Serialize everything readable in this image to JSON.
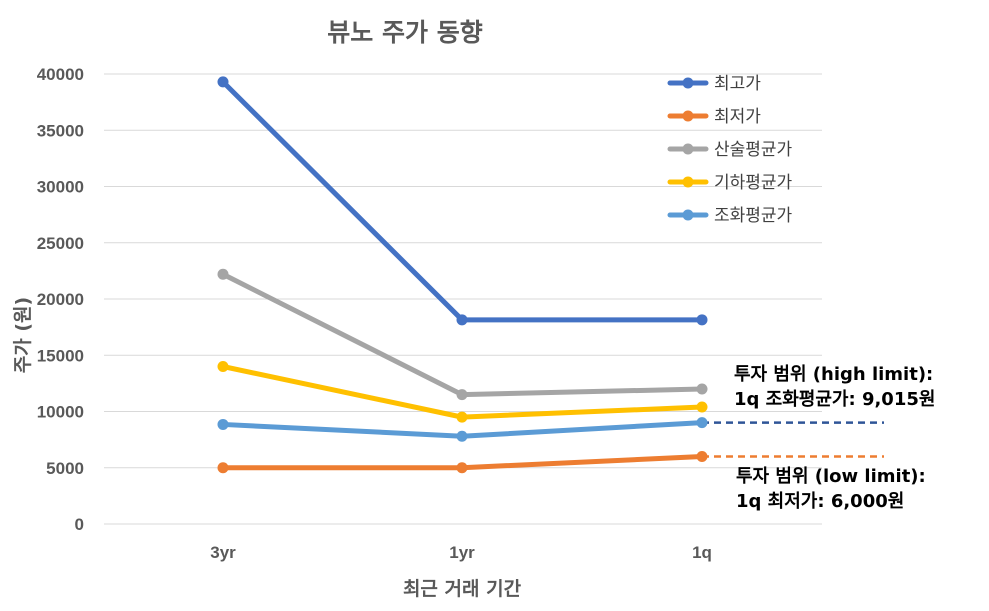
{
  "chart_data": {
    "type": "line",
    "title": "뷰노 주가 동향",
    "xlabel": "최근 거래 기간",
    "ylabel": "주가 (원)",
    "categories": [
      "3yr",
      "1yr",
      "1q"
    ],
    "ylim": [
      0,
      40000
    ],
    "yticks": [
      0,
      5000,
      10000,
      15000,
      20000,
      25000,
      30000,
      35000,
      40000
    ],
    "grid": true,
    "legend_position": "top-right",
    "series": [
      {
        "name": "최고가",
        "color": "#4472C4",
        "values": [
          39300,
          18150,
          18150
        ]
      },
      {
        "name": "최저가",
        "color": "#ED7D31",
        "values": [
          5000,
          5000,
          6000
        ]
      },
      {
        "name": "산술평균가",
        "color": "#A5A5A5",
        "values": [
          22200,
          11500,
          12000
        ]
      },
      {
        "name": "기하평균가",
        "color": "#FFC000",
        "values": [
          14000,
          9500,
          10400
        ]
      },
      {
        "name": "조화평균가",
        "color": "#5B9BD5",
        "values": [
          8850,
          7800,
          9015
        ]
      }
    ],
    "reference_lines": [
      {
        "value": 9015,
        "color": "#2F5597",
        "style": "dashed"
      },
      {
        "value": 6000,
        "color": "#ED7D31",
        "style": "dashed"
      }
    ],
    "annotations": [
      {
        "line1": "투자 범위 (high limit):",
        "line2": "1q 조화평균가: 9,015원"
      },
      {
        "line1": "투자 범위 (low limit):",
        "line2": "1q 최저가: 6,000원"
      }
    ]
  }
}
